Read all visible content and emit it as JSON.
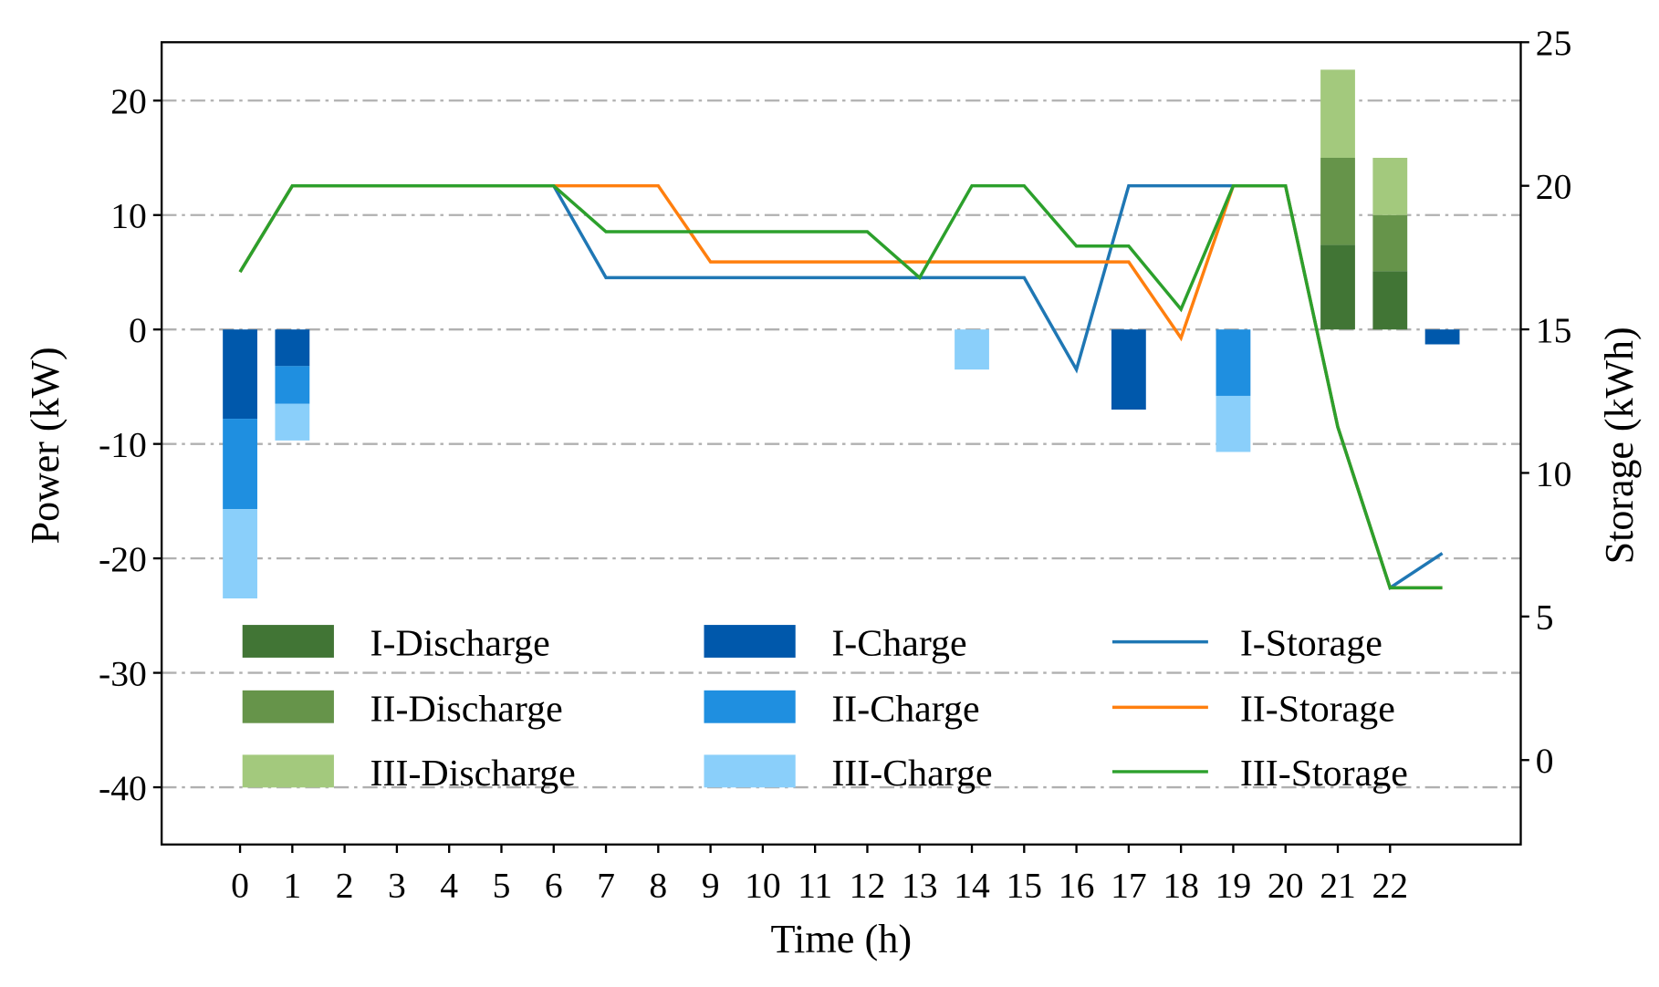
{
  "chart_data": {
    "type": "bar",
    "xlabel": "Time (h)",
    "ylabel": "Power (kW)",
    "y2label": "Storage (kWh)",
    "xlim": [
      -1.5,
      24.5
    ],
    "ylim": [
      -45,
      25.1
    ],
    "y2lim": [
      -2.94,
      25
    ],
    "x_ticks": [
      0,
      1,
      2,
      3,
      4,
      5,
      6,
      7,
      8,
      9,
      10,
      11,
      12,
      13,
      14,
      15,
      16,
      17,
      18,
      19,
      20,
      21,
      22
    ],
    "y_ticks": [
      20,
      10,
      0,
      -10,
      -20,
      -30,
      -40
    ],
    "y2_ticks": [
      25,
      20,
      15,
      10,
      5,
      0
    ],
    "grid": "horizontal dash-dot",
    "legend_placement": "lower-center, 3 columns",
    "hours": [
      0,
      1,
      2,
      3,
      4,
      5,
      6,
      7,
      8,
      9,
      10,
      11,
      12,
      13,
      14,
      15,
      16,
      17,
      18,
      19,
      20,
      21,
      22,
      23
    ],
    "bar_series": [
      {
        "name": "I-Discharge",
        "color": "#417535",
        "values": [
          0,
          0,
          0,
          0,
          0,
          0,
          0,
          0,
          0,
          0,
          0,
          0,
          0,
          0,
          0,
          0,
          0,
          0,
          0,
          0,
          0,
          7.4,
          5.1,
          0
        ]
      },
      {
        "name": "II-Discharge",
        "color": "#66944a",
        "values": [
          0,
          0,
          0,
          0,
          0,
          0,
          0,
          0,
          0,
          0,
          0,
          0,
          0,
          0,
          0,
          0,
          0,
          0,
          0,
          0,
          0,
          7.6,
          4.9,
          0
        ]
      },
      {
        "name": "III-Discharge",
        "color": "#a3c97d",
        "values": [
          0,
          0,
          0,
          0,
          0,
          0,
          0,
          0,
          0,
          0,
          0,
          0,
          0,
          0,
          0,
          0,
          0,
          0,
          0,
          0,
          0,
          7.7,
          5.0,
          0
        ]
      },
      {
        "name": "I-Charge",
        "color": "#0058ab",
        "values": [
          -7.8,
          -3.2,
          0,
          0,
          0,
          0,
          0,
          0,
          0,
          0,
          0,
          0,
          0,
          0,
          0,
          0,
          0,
          -7.0,
          0,
          0,
          0,
          0,
          0,
          -1.3
        ]
      },
      {
        "name": "II-Charge",
        "color": "#1f8fe0",
        "values": [
          -7.9,
          -3.3,
          0,
          0,
          0,
          0,
          0,
          0,
          0,
          0,
          0,
          0,
          0,
          0,
          0,
          0,
          0,
          0,
          0,
          -5.8,
          0,
          0,
          0,
          0
        ]
      },
      {
        "name": "III-Charge",
        "color": "#8acffa",
        "values": [
          -7.8,
          -3.2,
          0,
          0,
          0,
          0,
          0,
          0,
          0,
          0,
          0,
          0,
          0,
          0,
          -3.5,
          0,
          0,
          0,
          0,
          -4.9,
          0,
          0,
          0,
          0
        ]
      }
    ],
    "line_series": [
      {
        "name": "I-Storage",
        "color": "#1f77b4",
        "values": [
          17,
          20,
          20,
          20,
          20,
          20,
          20,
          16.8,
          16.8,
          16.8,
          16.8,
          16.8,
          16.8,
          16.8,
          16.8,
          16.8,
          13.6,
          20,
          20,
          20,
          20,
          11.6,
          6.0,
          7.2
        ]
      },
      {
        "name": "II-Storage",
        "color": "#ff7f0e",
        "values": [
          17,
          20,
          20,
          20,
          20,
          20,
          20,
          20,
          20,
          17.35,
          17.35,
          17.35,
          17.35,
          17.35,
          17.35,
          17.35,
          17.35,
          17.35,
          14.7,
          20,
          20,
          11.6,
          6.0,
          6.0
        ]
      },
      {
        "name": "III-Storage",
        "color": "#2ca02c",
        "values": [
          17,
          20,
          20,
          20,
          20,
          20,
          20,
          18.4,
          18.4,
          18.4,
          18.4,
          18.4,
          18.4,
          16.8,
          20,
          20,
          17.9,
          17.9,
          15.7,
          20,
          20,
          11.6,
          6.0,
          6.0
        ]
      }
    ],
    "legend": [
      "I-Discharge",
      "I-Charge",
      "I-Storage",
      "II-Discharge",
      "II-Charge",
      "II-Storage",
      "III-Discharge",
      "III-Charge",
      "III-Storage"
    ]
  }
}
